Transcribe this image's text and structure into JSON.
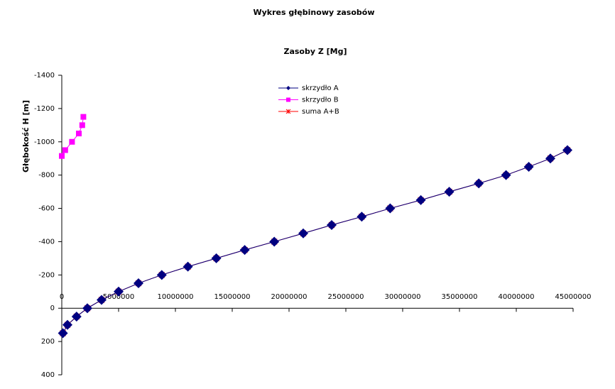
{
  "chart_data": {
    "type": "scatter",
    "title": "Wykres głębinowy zasobów",
    "x_label": "Zasoby Z [Mg]",
    "y_label": "Głębokość H [m]",
    "xlim": [
      0,
      45000000
    ],
    "xticks": [
      0,
      5000000,
      10000000,
      15000000,
      20000000,
      25000000,
      30000000,
      35000000,
      40000000,
      45000000
    ],
    "ylim": [
      -1400,
      400
    ],
    "y_inverted": true,
    "yticks": [
      -1400,
      -1200,
      -1000,
      -800,
      -600,
      -400,
      -200,
      0,
      200,
      400
    ],
    "grid": false,
    "legend": "top",
    "series": [
      {
        "name": "skrzydło A",
        "color": "#000080",
        "marker": "diamond",
        "x": [
          100000,
          500000,
          1300000,
          2250000,
          3500000,
          5000000,
          6750000,
          8800000,
          11100000,
          13600000,
          16100000,
          18700000,
          21250000,
          23750000,
          26400000,
          28900000,
          31600000,
          34100000,
          36700000,
          39100000,
          41100000,
          43000000,
          44500000
        ],
        "values": [
          150,
          100,
          50,
          0,
          -50,
          -100,
          -150,
          -200,
          -250,
          -300,
          -350,
          -400,
          -450,
          -500,
          -550,
          -600,
          -650,
          -700,
          -750,
          -800,
          -850,
          -900,
          -950
        ]
      },
      {
        "name": "skrzydło B",
        "color": "#ff00ff",
        "marker": "square",
        "x": [
          0,
          300000,
          900000,
          1500000,
          1800000,
          1900000
        ],
        "values": [
          -915,
          -950,
          -1000,
          -1050,
          -1100,
          -1150
        ]
      },
      {
        "name": "suma A+B",
        "color": "#ff0000",
        "marker": "star",
        "x": [
          100000,
          500000,
          1300000,
          2250000,
          3500000,
          5000000,
          6750000,
          8800000,
          11100000,
          13600000,
          16100000,
          18700000,
          21250000,
          23750000,
          26400000,
          28900000,
          31600000,
          34100000,
          36700000,
          39100000,
          41100000,
          43000000,
          44500000
        ],
        "values": [
          150,
          100,
          50,
          0,
          -50,
          -100,
          -150,
          -200,
          -250,
          -300,
          -350,
          -400,
          -450,
          -500,
          -550,
          -600,
          -650,
          -700,
          -750,
          -800,
          -850,
          -900,
          -950
        ]
      }
    ]
  }
}
